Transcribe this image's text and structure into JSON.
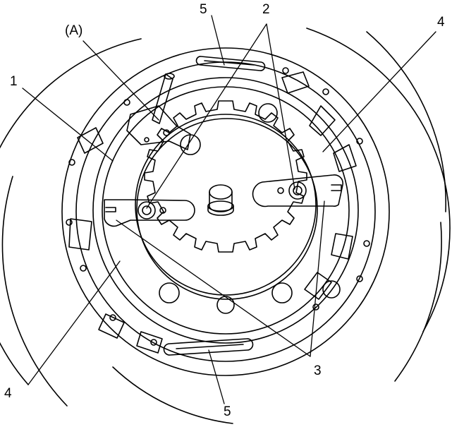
{
  "callouts": {
    "label_a": "(A)",
    "label_1": "1",
    "label_2": "2",
    "label_3": "3",
    "label_4_top_right": "4",
    "label_4_bottom_left": "4",
    "label_5_top": "5",
    "label_5_bottom": "5"
  },
  "colors": {
    "ink": "#000000",
    "paper": "#ffffff"
  }
}
